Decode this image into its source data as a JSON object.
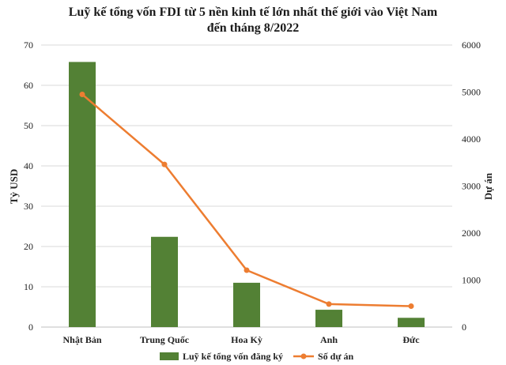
{
  "chart_data": {
    "type": "bar",
    "title_line1": "Luỹ kế tổng vốn FDI từ 5 nền kinh tế lớn nhất thế giới vào Việt Nam",
    "title_line2": "đến tháng 8/2022",
    "categories": [
      "Nhật Bản",
      "Trung Quốc",
      "Hoa Kỳ",
      "Anh",
      "Đức"
    ],
    "series": [
      {
        "name": "Luỹ kế tổng vốn đăng ký",
        "kind": "bar",
        "axis": "left",
        "color": "#538135",
        "values": [
          65.8,
          22.4,
          11.0,
          4.3,
          2.3
        ]
      },
      {
        "name": "Số dự án",
        "kind": "line",
        "axis": "right",
        "color": "#ED7D31",
        "values": [
          4950,
          3460,
          1210,
          490,
          445
        ]
      }
    ],
    "ylabel_left": "Tỷ USD",
    "ylabel_right": "Dự án",
    "ylim_left": [
      0,
      70
    ],
    "ylim_right": [
      0,
      6000
    ],
    "yticks_left": [
      "0",
      "10",
      "20",
      "30",
      "40",
      "50",
      "60",
      "70"
    ],
    "yticks_right": [
      "0",
      "1000",
      "2000",
      "3000",
      "4000",
      "5000",
      "6000"
    ],
    "grid": true,
    "legend_position": "bottom"
  }
}
